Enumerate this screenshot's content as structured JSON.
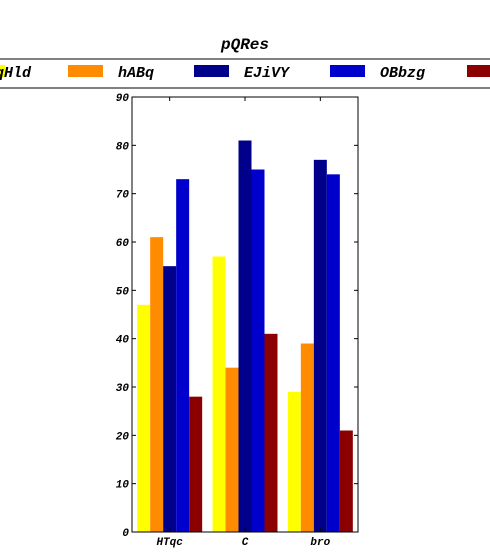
{
  "chart_data": {
    "type": "bar",
    "title": "pQRes",
    "xlabel": "",
    "ylabel": "",
    "categories": [
      "HTqc",
      "C",
      "bro"
    ],
    "ylim": [
      0,
      90
    ],
    "yticks": [
      0,
      10,
      20,
      30,
      40,
      50,
      60,
      70,
      80,
      90
    ],
    "grid": false,
    "legend_position": "top",
    "series": [
      {
        "name": "qHld",
        "color": "#ffff00",
        "values": [
          47,
          57,
          29
        ]
      },
      {
        "name": "hABq",
        "color": "#ff8c00",
        "values": [
          61,
          34,
          39
        ]
      },
      {
        "name": "EJiVY",
        "color": "#00008b",
        "values": [
          55,
          81,
          77
        ]
      },
      {
        "name": "OBbzg",
        "color": "#0000cd",
        "values": [
          73,
          75,
          74
        ]
      },
      {
        "name": "",
        "color": "#8b0000",
        "values": [
          28,
          41,
          21
        ]
      }
    ]
  }
}
